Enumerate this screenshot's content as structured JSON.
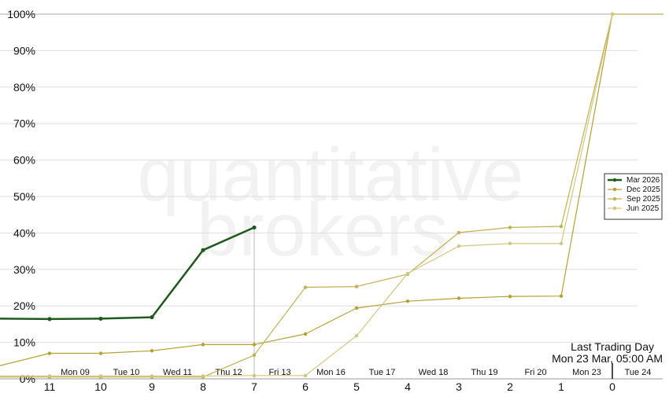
{
  "watermark": {
    "line1": "quantitative",
    "line2": "brokers"
  },
  "chart_data": {
    "type": "line",
    "x_reversed": true,
    "xlim": [
      12,
      -1
    ],
    "ylim": [
      0,
      100
    ],
    "x_ticks": [
      11,
      10,
      9,
      8,
      7,
      6,
      5,
      4,
      3,
      2,
      1,
      0
    ],
    "y_ticks": [
      0,
      10,
      20,
      30,
      40,
      50,
      60,
      70,
      80,
      90,
      100
    ],
    "y_tick_labels": [
      "0%",
      "10%",
      "20%",
      "30%",
      "40%",
      "50%",
      "60%",
      "70%",
      "80%",
      "90%",
      "100%"
    ],
    "grid": true,
    "legend_position": "right",
    "day_labels": [
      {
        "label": "Mon 09",
        "x": 10.5
      },
      {
        "label": "Tue 10",
        "x": 9.5
      },
      {
        "label": "Wed 11",
        "x": 8.5
      },
      {
        "label": "Thu 12",
        "x": 7.5
      },
      {
        "label": "Fri 13",
        "x": 6.5
      },
      {
        "label": "Mon 16",
        "x": 5.5
      },
      {
        "label": "Tue 17",
        "x": 4.5
      },
      {
        "label": "Wed 18",
        "x": 3.5
      },
      {
        "label": "Thu 19",
        "x": 2.5
      },
      {
        "label": "Fri 20",
        "x": 1.5
      },
      {
        "label": "Mon 23",
        "x": 0.5
      },
      {
        "label": "Tue 24",
        "x": -0.5
      }
    ],
    "current_marker_x": 7,
    "last_trading_marker_x": 0,
    "annotation": {
      "line1": "Last Trading Day",
      "line2": "Mon 23 Mar, 05:00 AM"
    },
    "series": [
      {
        "name": "Mar 2026",
        "color": "#1e5a1e",
        "emphasis": true,
        "x": [
          12,
          11,
          10,
          9,
          8,
          7
        ],
        "y": [
          16.5,
          16.4,
          16.5,
          16.9,
          35.3,
          41.5
        ],
        "markers": [
          11,
          10,
          9,
          8,
          7
        ]
      },
      {
        "name": "Dec 2025",
        "color": "#b5a032",
        "emphasis": false,
        "x": [
          12,
          11,
          10,
          9,
          8,
          7,
          6,
          5,
          4,
          3,
          2,
          1,
          0,
          -1
        ],
        "y": [
          3.5,
          7,
          7,
          7.7,
          9.4,
          9.4,
          12.3,
          19.4,
          21.3,
          22.1,
          22.6,
          22.7,
          100,
          100
        ],
        "markers": [
          11,
          10,
          9,
          8,
          7,
          6,
          5,
          4,
          3,
          2,
          1,
          0
        ]
      },
      {
        "name": "Sep 2025",
        "color": "#c2b052",
        "emphasis": false,
        "x": [
          12,
          11,
          10,
          9,
          8,
          7,
          6,
          5,
          4,
          3,
          2,
          1,
          0,
          -1
        ],
        "y": [
          0.5,
          0.5,
          0.5,
          0.5,
          0.5,
          6.5,
          25.1,
          25.3,
          28.7,
          40.1,
          41.5,
          41.8,
          100,
          100
        ],
        "markers": [
          11,
          10,
          9,
          8,
          7,
          6,
          5,
          4,
          3,
          2,
          1,
          0
        ]
      },
      {
        "name": "Jun 2025",
        "color": "#d2c67e",
        "emphasis": false,
        "x": [
          12,
          11,
          10,
          9,
          8,
          7,
          6,
          5,
          4,
          3,
          2,
          1,
          0,
          -1
        ],
        "y": [
          0.8,
          0.8,
          0.8,
          0.8,
          0.8,
          0.9,
          0.9,
          11.8,
          28.9,
          36.4,
          37.1,
          37.1,
          100,
          100
        ],
        "markers": [
          11,
          10,
          9,
          8,
          7,
          6,
          5,
          4,
          3,
          2,
          1,
          0
        ]
      }
    ]
  }
}
